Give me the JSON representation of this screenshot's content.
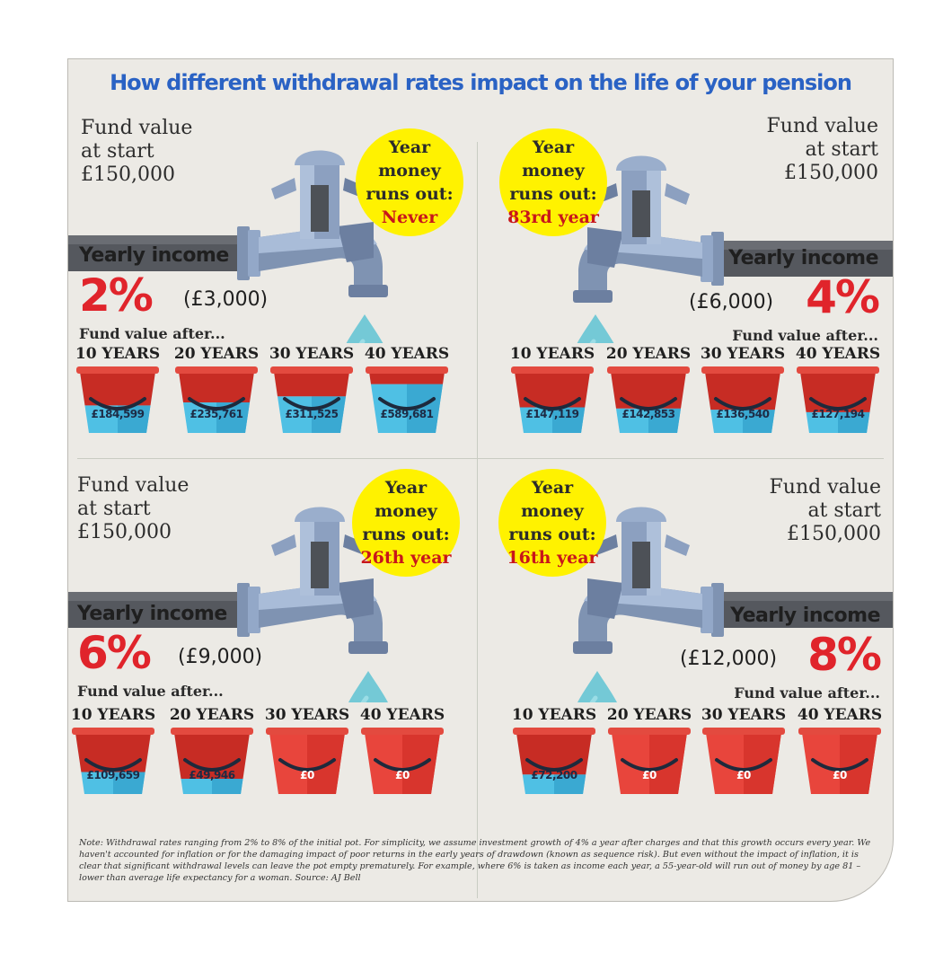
{
  "title": "How different withdrawal rates impact on the life of your pension",
  "colors": {
    "title": "#2a62c4",
    "accent": "#e0242b",
    "badge": "#fff200",
    "water": "#4fc0e4",
    "bucket_red": "#e8453c"
  },
  "labels": {
    "fund_line1": "Fund value",
    "fund_line2": "at start",
    "fund_value": "£150,000",
    "badge_line1": "Year",
    "badge_line2": "money",
    "badge_line3": "runs out:",
    "yearly_income": "Yearly income",
    "fund_after": "Fund value after...",
    "periods": [
      "10 YEARS",
      "20 YEARS",
      "30 YEARS",
      "40 YEARS"
    ]
  },
  "scenarios": [
    {
      "rate": "2%",
      "income": "(£3,000)",
      "runs_out": "Never",
      "values": [
        "£184,599",
        "£235,761",
        "£311,525",
        "£589,681"
      ],
      "water_fill": [
        0.45,
        0.5,
        0.6,
        0.8
      ]
    },
    {
      "rate": "4%",
      "income": "(£6,000)",
      "runs_out": "83rd year",
      "values": [
        "£147,119",
        "£142,853",
        "£136,540",
        "£127,194"
      ],
      "water_fill": [
        0.42,
        0.4,
        0.38,
        0.34
      ]
    },
    {
      "rate": "6%",
      "income": "(£9,000)",
      "runs_out": "26th year",
      "values": [
        "£109,659",
        "£49,946",
        "£0",
        "£0"
      ],
      "water_fill": [
        0.36,
        0.25,
        0,
        0
      ]
    },
    {
      "rate": "8%",
      "income": "(£12,000)",
      "runs_out": "16th year",
      "values": [
        "£72,200",
        "£0",
        "£0",
        "£0"
      ],
      "water_fill": [
        0.32,
        0,
        0,
        0
      ]
    }
  ],
  "note": "Note: Withdrawal rates ranging from 2% to 8% of the initial pot. For simplicity, we assume investment growth of 4% a year after charges and that this growth occurs every year. We haven't accounted for inflation or for the damaging impact of poor returns in the early years of drawdown (known as sequence risk). But even without the impact of inflation, it is clear that significant withdrawal levels can leave the pot empty prematurely. For example, where 6% is taken as income each year, a 55-year-old will run out of money by age 81 – lower than average life expectancy for a woman. Source: AJ Bell"
}
